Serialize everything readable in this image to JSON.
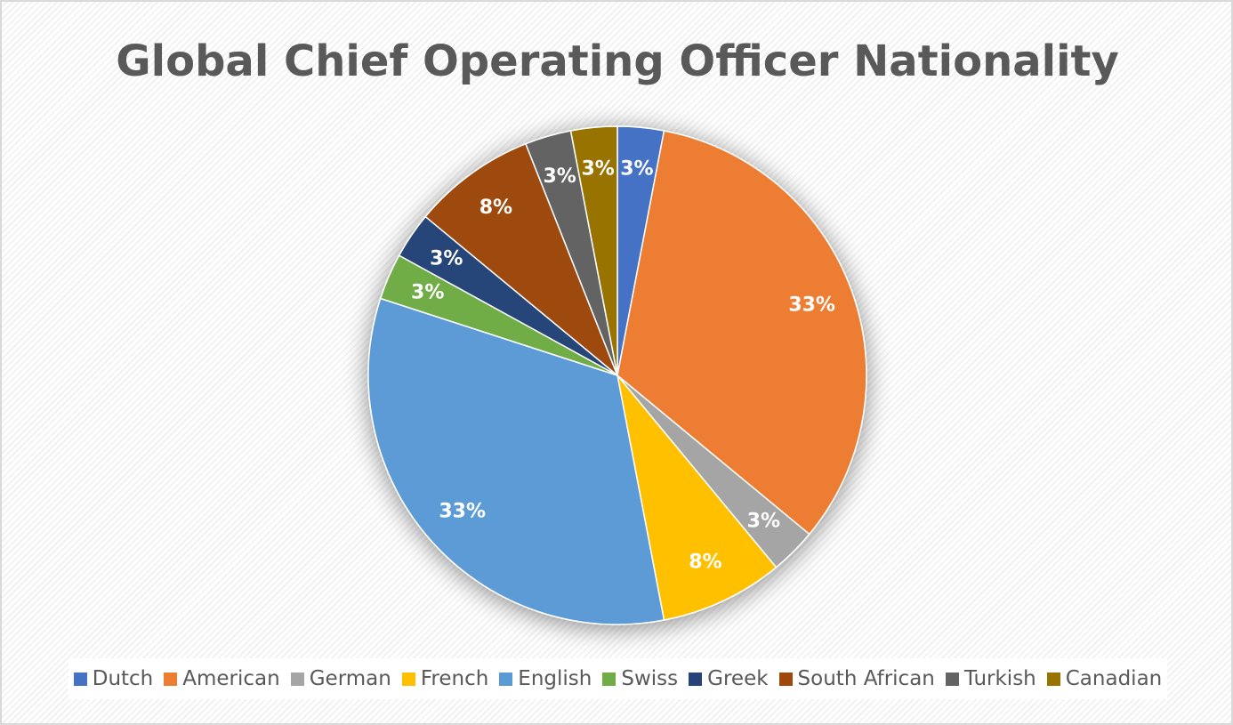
{
  "chart_data": {
    "type": "pie",
    "title": "Global Chief Operating Officer Nationality",
    "categories": [
      "Dutch",
      "American",
      "German",
      "French",
      "English",
      "Swiss",
      "Greek",
      "South African",
      "Turkish",
      "Canadian"
    ],
    "values": [
      3,
      33,
      3,
      8,
      33,
      3,
      3,
      8,
      3,
      3
    ],
    "value_labels": [
      "3%",
      "33%",
      "3%",
      "8%",
      "33%",
      "3%",
      "3%",
      "8%",
      "3%",
      "3%"
    ],
    "colors": [
      "#4472c4",
      "#ed7d31",
      "#a5a5a5",
      "#ffc000",
      "#5b9bd5",
      "#70ad47",
      "#264478",
      "#9e480e",
      "#636363",
      "#997300"
    ],
    "legend": "bottom"
  }
}
